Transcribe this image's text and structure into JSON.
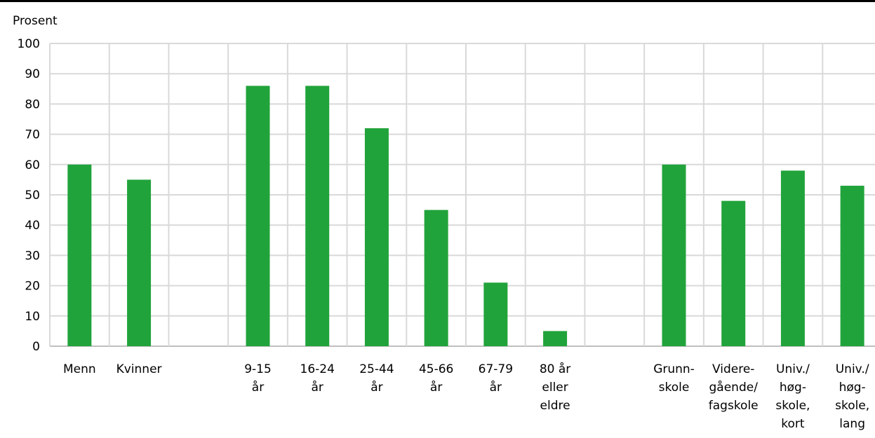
{
  "chart_data": {
    "type": "bar",
    "ylabel": "Prosent",
    "ylim": [
      0,
      100
    ],
    "yticks": [
      0,
      10,
      20,
      30,
      40,
      50,
      60,
      70,
      80,
      90,
      100
    ],
    "grid": true,
    "bar_color": "#21a33b",
    "categories": [
      [
        "Menn"
      ],
      [
        "Kvinner"
      ],
      [],
      [
        "9-15",
        "år"
      ],
      [
        "16-24",
        "år"
      ],
      [
        "25-44",
        "år"
      ],
      [
        "45-66",
        "år"
      ],
      [
        "67-79",
        "år"
      ],
      [
        "80 år",
        "eller",
        "eldre"
      ],
      [],
      [
        "Grunn-",
        "skole"
      ],
      [
        "Videre-",
        "gående/",
        "fagskole"
      ],
      [
        "Univ./",
        "høg-",
        "skole,",
        "kort"
      ],
      [
        "Univ./",
        "høg-",
        "skole,",
        "lang"
      ]
    ],
    "values": [
      60,
      55,
      null,
      86,
      86,
      72,
      45,
      21,
      5,
      null,
      60,
      48,
      58,
      53
    ]
  }
}
